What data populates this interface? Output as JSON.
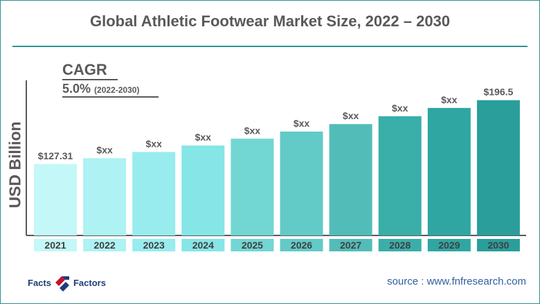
{
  "title": "Global Athletic Footwear Market Size, 2022 – 2030",
  "cagr": {
    "label": "CAGR",
    "value": "5.0%",
    "period": "(2022-2030)"
  },
  "brand": {
    "word1": "Facts",
    "word2": "Factors"
  },
  "source": "source : www.fnfresearch.com",
  "colors": {
    "accent": "#2f9490",
    "text": "#595959",
    "bars": [
      "#c4f8f8",
      "#aef2f3",
      "#98ecee",
      "#86e5e6",
      "#72d6d3",
      "#62cac7",
      "#52bcb8",
      "#3aaea9",
      "#2fa6a2",
      "#2a9e9a"
    ]
  },
  "chart_data": {
    "type": "bar",
    "ylabel": "USD Billion",
    "xlabel": "",
    "categories": [
      "2021",
      "2022",
      "2023",
      "2024",
      "2025",
      "2026",
      "2027",
      "2028",
      "2029",
      "2030"
    ],
    "values": [
      127.31,
      133.7,
      140.4,
      147.4,
      154.8,
      162.5,
      170.6,
      179.1,
      188.1,
      196.5
    ],
    "labels": [
      "$127.31",
      "$xx",
      "$xx",
      "$xx",
      "$xx",
      "$xx",
      "$xx",
      "$xx",
      "$xx",
      "$196.5"
    ],
    "ylim": [
      0,
      230
    ],
    "grid": false
  }
}
